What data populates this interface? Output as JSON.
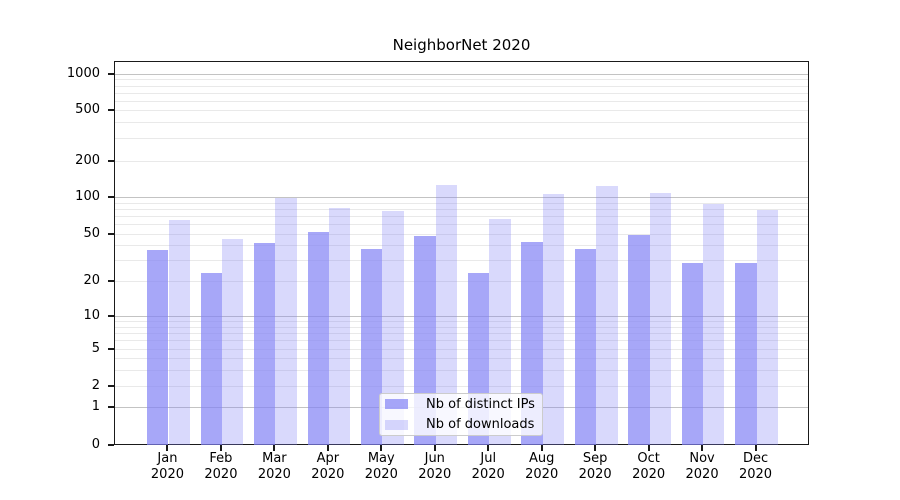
{
  "title": "NeighborNet 2020",
  "chart_data": {
    "type": "bar",
    "title": "NeighborNet 2020",
    "categories": [
      "Jan 2020",
      "Feb 2020",
      "Mar 2020",
      "Apr 2020",
      "May 2020",
      "Jun 2020",
      "Jul 2020",
      "Aug 2020",
      "Sep 2020",
      "Oct 2020",
      "Nov 2020",
      "Dec 2020"
    ],
    "x_months": [
      "Jan",
      "Feb",
      "Mar",
      "Apr",
      "May",
      "Jun",
      "Jul",
      "Aug",
      "Sep",
      "Oct",
      "Nov",
      "Dec"
    ],
    "x_year": "2020",
    "series": [
      {
        "name": "Nb of distinct IPs",
        "color": "rgba(130,130,245,0.7)",
        "values": [
          37,
          24,
          43,
          53,
          38,
          49,
          24,
          44,
          38,
          50,
          29,
          29
        ]
      },
      {
        "name": "Nb of downloads",
        "color": "rgba(130,130,245,0.3)",
        "values": [
          66,
          46,
          100,
          83,
          78,
          128,
          67,
          108,
          126,
          110,
          90,
          80
        ]
      }
    ],
    "yscale": "symlog",
    "ytick_values": [
      0,
      1,
      2,
      5,
      10,
      20,
      50,
      100,
      200,
      500,
      1000
    ],
    "ylim": [
      0,
      1333
    ],
    "grid": true,
    "legend_position": "lower center"
  },
  "colors": {
    "bar_base": "#8282f5",
    "major_gridline": "#c3c3c3",
    "minor_gridline": "#e9e9e9",
    "axis": "#1a1a1a",
    "text": "#000000"
  }
}
